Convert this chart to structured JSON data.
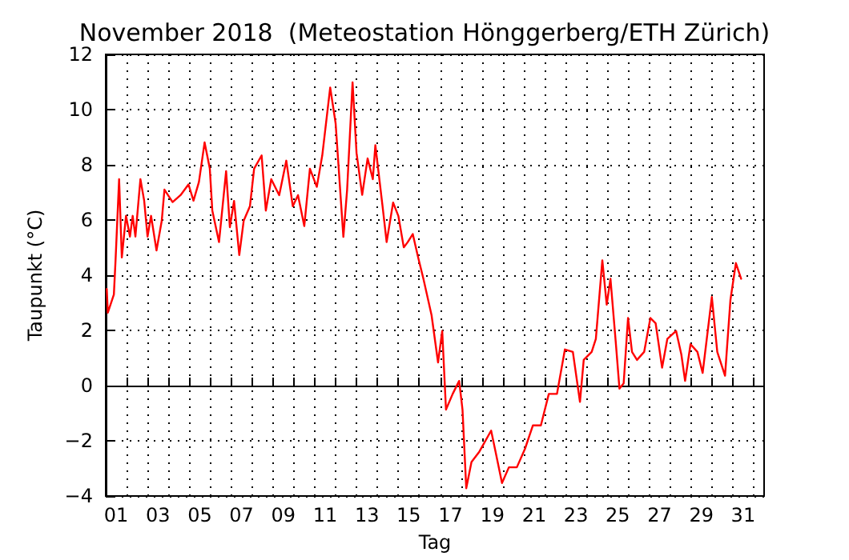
{
  "chart_data": {
    "type": "line",
    "title": "November 2018  (Meteostation Hönggerberg/ETH Zürich)",
    "xlabel": "Tag",
    "ylabel": "Taupunkt (°C)",
    "series": [
      {
        "color": "#ff0000",
        "x": [
          1.05,
          1.1,
          1.39,
          1.47,
          1.64,
          1.77,
          1.97,
          2.16,
          2.29,
          2.42,
          2.66,
          2.84,
          3.0,
          3.17,
          3.43,
          3.68,
          3.81,
          4.2,
          4.58,
          4.96,
          5.2,
          5.46,
          5.73,
          5.98,
          6.1,
          6.42,
          6.76,
          6.94,
          7.14,
          7.39,
          7.6,
          7.9,
          8.1,
          8.46,
          8.66,
          8.92,
          9.3,
          9.64,
          9.95,
          10.2,
          10.5,
          10.77,
          11.1,
          11.36,
          11.74,
          12.0,
          12.37,
          12.55,
          12.81,
          13.0,
          13.27,
          13.53,
          13.78,
          13.9,
          14.24,
          14.44,
          14.75,
          15.0,
          15.26,
          15.45,
          15.69,
          15.95,
          16.2,
          16.59,
          16.9,
          17.1,
          17.28,
          17.6,
          17.91,
          18.07,
          18.25,
          18.5,
          18.88,
          19.44,
          19.65,
          19.96,
          20.29,
          20.67,
          21.06,
          21.44,
          21.82,
          22.2,
          22.59,
          22.97,
          23.35,
          23.69,
          23.87,
          24.25,
          24.45,
          24.76,
          24.97,
          25.15,
          25.4,
          25.58,
          25.78,
          25.99,
          26.18,
          26.42,
          26.76,
          27.06,
          27.31,
          27.62,
          27.87,
          28.29,
          28.54,
          28.72,
          28.98,
          29.31,
          29.56,
          30.0,
          30.26,
          30.63,
          30.89,
          31.15,
          31.4
        ],
        "values": [
          3.5,
          2.64,
          3.3,
          4.54,
          7.48,
          4.64,
          6.15,
          5.4,
          6.15,
          5.4,
          7.48,
          6.7,
          5.4,
          6.15,
          4.9,
          5.97,
          7.1,
          6.65,
          6.9,
          7.29,
          6.7,
          7.38,
          8.81,
          7.86,
          6.34,
          5.2,
          7.77,
          5.74,
          6.69,
          4.73,
          5.97,
          6.5,
          7.86,
          8.34,
          6.34,
          7.48,
          6.9,
          8.15,
          6.5,
          6.9,
          5.78,
          7.86,
          7.2,
          8.34,
          10.8,
          9.5,
          5.39,
          7.1,
          10.99,
          8.43,
          6.91,
          8.23,
          7.48,
          8.71,
          6.53,
          5.2,
          6.63,
          6.15,
          5.01,
          5.2,
          5.49,
          4.64,
          3.87,
          2.55,
          0.84,
          1.98,
          -0.87,
          -0.3,
          0.17,
          -0.87,
          -3.72,
          -2.77,
          -2.39,
          -1.63,
          -2.39,
          -3.53,
          -2.96,
          -2.96,
          -2.29,
          -1.44,
          -1.44,
          -0.3,
          -0.3,
          1.31,
          1.22,
          -0.59,
          0.93,
          1.22,
          1.69,
          4.54,
          2.93,
          3.87,
          1.6,
          -0.11,
          0.08,
          2.45,
          1.22,
          0.93,
          1.22,
          2.45,
          2.26,
          0.65,
          1.69,
          1.98,
          1.13,
          0.17,
          1.5,
          1.22,
          0.46,
          3.21,
          1.22,
          0.36,
          3.11,
          4.44,
          3.87
        ]
      }
    ],
    "xlim": [
      1,
      32.5
    ],
    "xticks": [
      {
        "value": 1.5,
        "label": "01"
      },
      {
        "value": 3.5,
        "label": "03"
      },
      {
        "value": 5.5,
        "label": "05"
      },
      {
        "value": 7.5,
        "label": "07"
      },
      {
        "value": 9.5,
        "label": "09"
      },
      {
        "value": 11.5,
        "label": "11"
      },
      {
        "value": 13.5,
        "label": "13"
      },
      {
        "value": 15.5,
        "label": "15"
      },
      {
        "value": 17.5,
        "label": "17"
      },
      {
        "value": 19.5,
        "label": "19"
      },
      {
        "value": 21.5,
        "label": "21"
      },
      {
        "value": 23.5,
        "label": "23"
      },
      {
        "value": 25.5,
        "label": "25"
      },
      {
        "value": 27.5,
        "label": "27"
      },
      {
        "value": 29.5,
        "label": "29"
      },
      {
        "value": 31.5,
        "label": "31"
      },
      {
        "value": 2,
        "label": null
      },
      {
        "value": 3,
        "label": null
      },
      {
        "value": 4,
        "label": null
      },
      {
        "value": 5,
        "label": null
      },
      {
        "value": 6,
        "label": null
      },
      {
        "value": 7,
        "label": null
      },
      {
        "value": 8,
        "label": null
      },
      {
        "value": 9,
        "label": null
      },
      {
        "value": 10,
        "label": null
      },
      {
        "value": 11,
        "label": null
      },
      {
        "value": 12,
        "label": null
      },
      {
        "value": 13,
        "label": null
      },
      {
        "value": 14,
        "label": null
      },
      {
        "value": 15,
        "label": null
      },
      {
        "value": 16,
        "label": null
      },
      {
        "value": 17,
        "label": null
      },
      {
        "value": 18,
        "label": null
      },
      {
        "value": 19,
        "label": null
      },
      {
        "value": 20,
        "label": null
      },
      {
        "value": 21,
        "label": null
      },
      {
        "value": 22,
        "label": null
      },
      {
        "value": 23,
        "label": null
      },
      {
        "value": 24,
        "label": null
      },
      {
        "value": 25,
        "label": null
      },
      {
        "value": 26,
        "label": null
      },
      {
        "value": 27,
        "label": null
      },
      {
        "value": 28,
        "label": null
      },
      {
        "value": 29,
        "label": null
      },
      {
        "value": 30,
        "label": null
      },
      {
        "value": 31,
        "label": null
      },
      {
        "value": 32,
        "label": null
      }
    ],
    "ylim": [
      -4,
      12
    ],
    "yticks": [
      {
        "value": -4,
        "label": "−4"
      },
      {
        "value": -2,
        "label": "−2"
      },
      0,
      2,
      4,
      6,
      8,
      10,
      12
    ],
    "grid": true,
    "marker": "none",
    "line_style": "solid"
  }
}
